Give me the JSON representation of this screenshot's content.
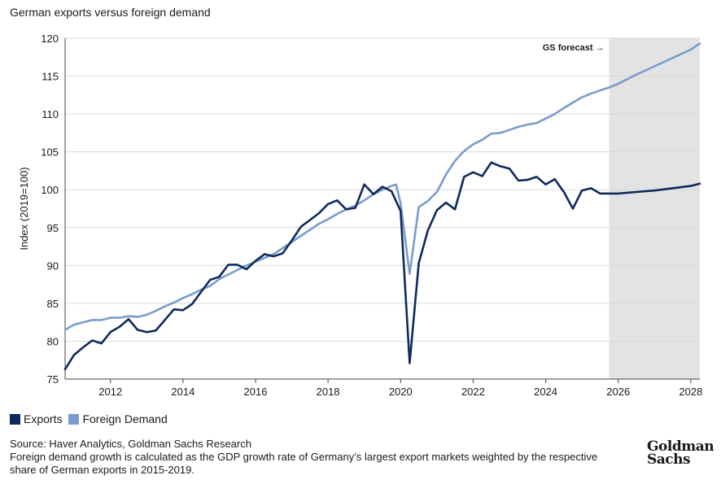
{
  "title": "German exports versus foreign demand",
  "source": "Source: Haver Analytics, Goldman Sachs Research",
  "note": "Foreign demand growth is calculated as the GDP growth rate of Germany’s largest export markets weighted by the respective share of German exports in 2015-2019.",
  "logo": {
    "line1": "Goldman",
    "line2": "Sachs"
  },
  "chart_data": {
    "type": "line",
    "title": "German exports versus foreign demand",
    "xlabel": "",
    "ylabel": "Index (2019=100)",
    "xlim": [
      2010.75,
      2028.25
    ],
    "ylim": [
      75,
      120
    ],
    "xticks": [
      2012,
      2014,
      2016,
      2018,
      2020,
      2022,
      2024,
      2026,
      2028
    ],
    "yticks": [
      75,
      80,
      85,
      90,
      95,
      100,
      105,
      110,
      115,
      120
    ],
    "grid": "horizontal",
    "forecast": {
      "label": "GS forecast →",
      "start": 2025.75,
      "end": 2028.25,
      "color": "#e3e3e3"
    },
    "legend_position": "bottom-left",
    "series": [
      {
        "name": "Exports",
        "color": "#0e2a5c",
        "points": [
          [
            2010.75,
            76.3
          ],
          [
            2011.0,
            78.2
          ],
          [
            2011.25,
            79.2
          ],
          [
            2011.5,
            80.1
          ],
          [
            2011.75,
            79.7
          ],
          [
            2012.0,
            81.2
          ],
          [
            2012.25,
            81.9
          ],
          [
            2012.5,
            82.9
          ],
          [
            2012.75,
            81.5
          ],
          [
            2013.0,
            81.2
          ],
          [
            2013.25,
            81.4
          ],
          [
            2013.5,
            82.8
          ],
          [
            2013.75,
            84.2
          ],
          [
            2014.0,
            84.1
          ],
          [
            2014.25,
            84.9
          ],
          [
            2014.5,
            86.5
          ],
          [
            2014.75,
            88.1
          ],
          [
            2015.0,
            88.5
          ],
          [
            2015.25,
            90.1
          ],
          [
            2015.5,
            90.1
          ],
          [
            2015.75,
            89.5
          ],
          [
            2016.0,
            90.6
          ],
          [
            2016.25,
            91.5
          ],
          [
            2016.5,
            91.2
          ],
          [
            2016.75,
            91.6
          ],
          [
            2017.0,
            93.3
          ],
          [
            2017.25,
            95.1
          ],
          [
            2017.5,
            96.0
          ],
          [
            2017.75,
            96.9
          ],
          [
            2018.0,
            98.1
          ],
          [
            2018.25,
            98.6
          ],
          [
            2018.5,
            97.4
          ],
          [
            2018.75,
            97.6
          ],
          [
            2019.0,
            100.7
          ],
          [
            2019.25,
            99.4
          ],
          [
            2019.5,
            100.4
          ],
          [
            2019.75,
            99.8
          ],
          [
            2020.0,
            97.2
          ],
          [
            2020.25,
            77.1
          ],
          [
            2020.5,
            90.3
          ],
          [
            2020.75,
            94.6
          ],
          [
            2021.0,
            97.3
          ],
          [
            2021.25,
            98.3
          ],
          [
            2021.5,
            97.4
          ],
          [
            2021.75,
            101.7
          ],
          [
            2022.0,
            102.3
          ],
          [
            2022.25,
            101.8
          ],
          [
            2022.5,
            103.6
          ],
          [
            2022.75,
            103.1
          ],
          [
            2023.0,
            102.8
          ],
          [
            2023.25,
            101.2
          ],
          [
            2023.5,
            101.3
          ],
          [
            2023.75,
            101.7
          ],
          [
            2024.0,
            100.7
          ],
          [
            2024.25,
            101.4
          ],
          [
            2024.5,
            99.7
          ],
          [
            2024.75,
            97.5
          ],
          [
            2025.0,
            99.9
          ],
          [
            2025.25,
            100.2
          ],
          [
            2025.5,
            99.5
          ],
          [
            2025.75,
            99.5
          ],
          [
            2026.0,
            99.5
          ],
          [
            2026.5,
            99.7
          ],
          [
            2027.0,
            99.9
          ],
          [
            2027.5,
            100.2
          ],
          [
            2028.0,
            100.5
          ],
          [
            2028.25,
            100.8
          ]
        ]
      },
      {
        "name": "Foreign Demand",
        "color": "#7a9ccc",
        "points": [
          [
            2010.75,
            81.5
          ],
          [
            2011.0,
            82.2
          ],
          [
            2011.25,
            82.5
          ],
          [
            2011.5,
            82.8
          ],
          [
            2011.75,
            82.8
          ],
          [
            2012.0,
            83.1
          ],
          [
            2012.25,
            83.1
          ],
          [
            2012.5,
            83.3
          ],
          [
            2012.75,
            83.2
          ],
          [
            2013.0,
            83.5
          ],
          [
            2013.25,
            84.0
          ],
          [
            2013.5,
            84.6
          ],
          [
            2013.75,
            85.1
          ],
          [
            2014.0,
            85.7
          ],
          [
            2014.25,
            86.2
          ],
          [
            2014.5,
            86.8
          ],
          [
            2014.75,
            87.3
          ],
          [
            2015.0,
            88.2
          ],
          [
            2015.25,
            88.8
          ],
          [
            2015.5,
            89.4
          ],
          [
            2015.75,
            90.0
          ],
          [
            2016.0,
            90.5
          ],
          [
            2016.25,
            91.0
          ],
          [
            2016.5,
            91.5
          ],
          [
            2016.75,
            92.3
          ],
          [
            2017.0,
            93.1
          ],
          [
            2017.25,
            93.9
          ],
          [
            2017.5,
            94.7
          ],
          [
            2017.75,
            95.5
          ],
          [
            2018.0,
            96.1
          ],
          [
            2018.25,
            96.8
          ],
          [
            2018.5,
            97.4
          ],
          [
            2018.75,
            97.9
          ],
          [
            2019.0,
            98.6
          ],
          [
            2019.25,
            99.4
          ],
          [
            2019.5,
            100.0
          ],
          [
            2019.75,
            100.5
          ],
          [
            2019.875,
            100.7
          ],
          [
            2020.0,
            98.2
          ],
          [
            2020.25,
            88.9
          ],
          [
            2020.5,
            97.7
          ],
          [
            2020.75,
            98.5
          ],
          [
            2021.0,
            99.7
          ],
          [
            2021.25,
            102.0
          ],
          [
            2021.5,
            103.8
          ],
          [
            2021.75,
            105.1
          ],
          [
            2022.0,
            106.0
          ],
          [
            2022.25,
            106.6
          ],
          [
            2022.5,
            107.4
          ],
          [
            2022.75,
            107.5
          ],
          [
            2023.0,
            107.9
          ],
          [
            2023.25,
            108.3
          ],
          [
            2023.5,
            108.6
          ],
          [
            2023.75,
            108.8
          ],
          [
            2024.0,
            109.4
          ],
          [
            2024.25,
            110.0
          ],
          [
            2024.5,
            110.8
          ],
          [
            2024.75,
            111.5
          ],
          [
            2025.0,
            112.2
          ],
          [
            2025.25,
            112.7
          ],
          [
            2025.5,
            113.1
          ],
          [
            2025.75,
            113.5
          ],
          [
            2026.0,
            114.0
          ],
          [
            2026.5,
            115.2
          ],
          [
            2027.0,
            116.3
          ],
          [
            2027.5,
            117.4
          ],
          [
            2028.0,
            118.5
          ],
          [
            2028.25,
            119.3
          ]
        ]
      }
    ]
  }
}
